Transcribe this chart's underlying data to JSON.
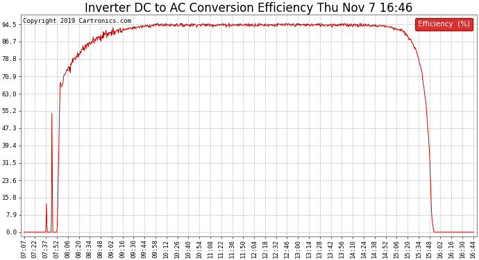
{
  "title": "Inverter DC to AC Conversion Efficiency Thu Nov 7 16:46",
  "copyright": "Copyright 2019 Cartronics.com",
  "legend_label": "Efficiency  (%)",
  "legend_bg": "#cc0000",
  "legend_fg": "#ffffff",
  "line_color": "#cc0000",
  "bg_color": "#ffffff",
  "grid_color": "#bbbbbb",
  "yticks": [
    0.0,
    7.9,
    15.8,
    23.6,
    31.5,
    39.4,
    47.3,
    55.2,
    63.0,
    70.9,
    78.8,
    86.7,
    94.5
  ],
  "ylim": [
    -2,
    99
  ],
  "xtick_labels": [
    "07:07",
    "07:22",
    "07:37",
    "07:52",
    "08:06",
    "08:20",
    "08:34",
    "08:48",
    "09:02",
    "09:16",
    "09:30",
    "09:44",
    "09:58",
    "10:12",
    "10:26",
    "10:40",
    "10:54",
    "11:08",
    "11:22",
    "11:36",
    "11:50",
    "12:04",
    "12:18",
    "12:32",
    "12:46",
    "13:00",
    "13:14",
    "13:28",
    "13:42",
    "13:56",
    "14:10",
    "14:24",
    "14:38",
    "14:52",
    "15:06",
    "15:20",
    "15:34",
    "15:48",
    "16:02",
    "16:16",
    "16:30",
    "16:44"
  ],
  "title_fontsize": 12,
  "axis_fontsize": 6.5,
  "copyright_fontsize": 6.5
}
